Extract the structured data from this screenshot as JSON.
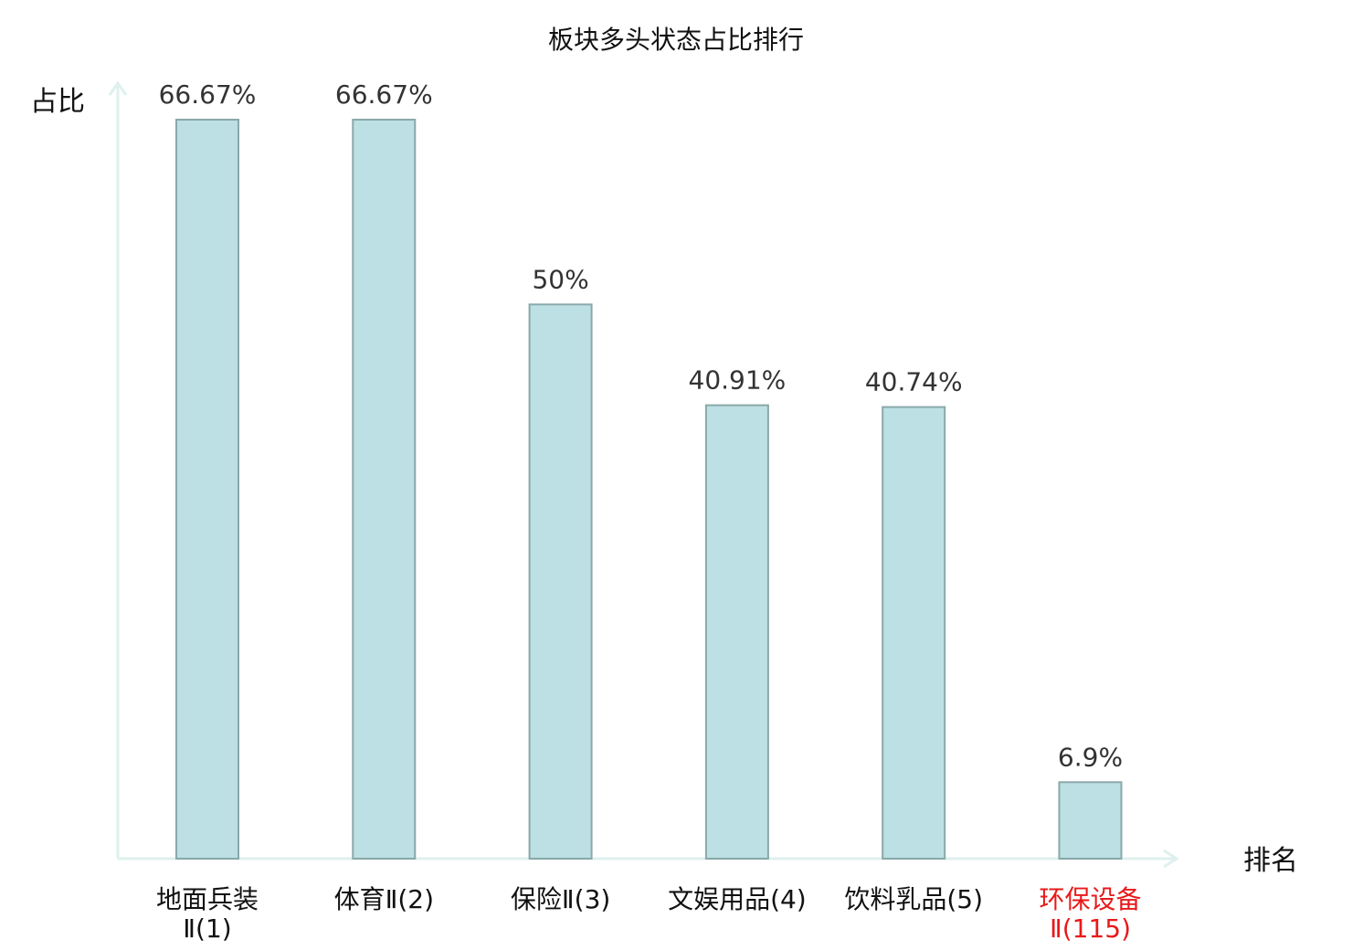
{
  "chart_data": {
    "type": "bar",
    "title": "板块多头状态占比排行",
    "xlabel": "排名",
    "ylabel": "占比",
    "ylim": [
      0,
      70
    ],
    "grid": false,
    "legend": "none",
    "categories": [
      "地面兵装Ⅱ(1)",
      "体育Ⅱ(2)",
      "保险Ⅱ(3)",
      "文娱用品(4)",
      "饮料乳品(5)",
      "环保设备Ⅱ(115)"
    ],
    "category_lines": [
      [
        "地面兵装",
        "Ⅱ(1)"
      ],
      [
        "体育Ⅱ(2)"
      ],
      [
        "保险Ⅱ(3)"
      ],
      [
        "文娱用品(4)"
      ],
      [
        "饮料乳品(5)"
      ],
      [
        "环保设备",
        "Ⅱ(115)"
      ]
    ],
    "values": [
      66.67,
      66.67,
      50,
      40.91,
      40.74,
      6.9
    ],
    "value_labels": [
      "66.67%",
      "66.67%",
      "50%",
      "40.91%",
      "40.74%",
      "6.9%"
    ],
    "highlighted_category_index": 5,
    "colors": {
      "bar_fill": "#bce0e3",
      "bar_stroke": "#8aa8aa",
      "axis": "#dff0ee",
      "highlight_label": "#e8191a",
      "label": "#111111"
    }
  }
}
